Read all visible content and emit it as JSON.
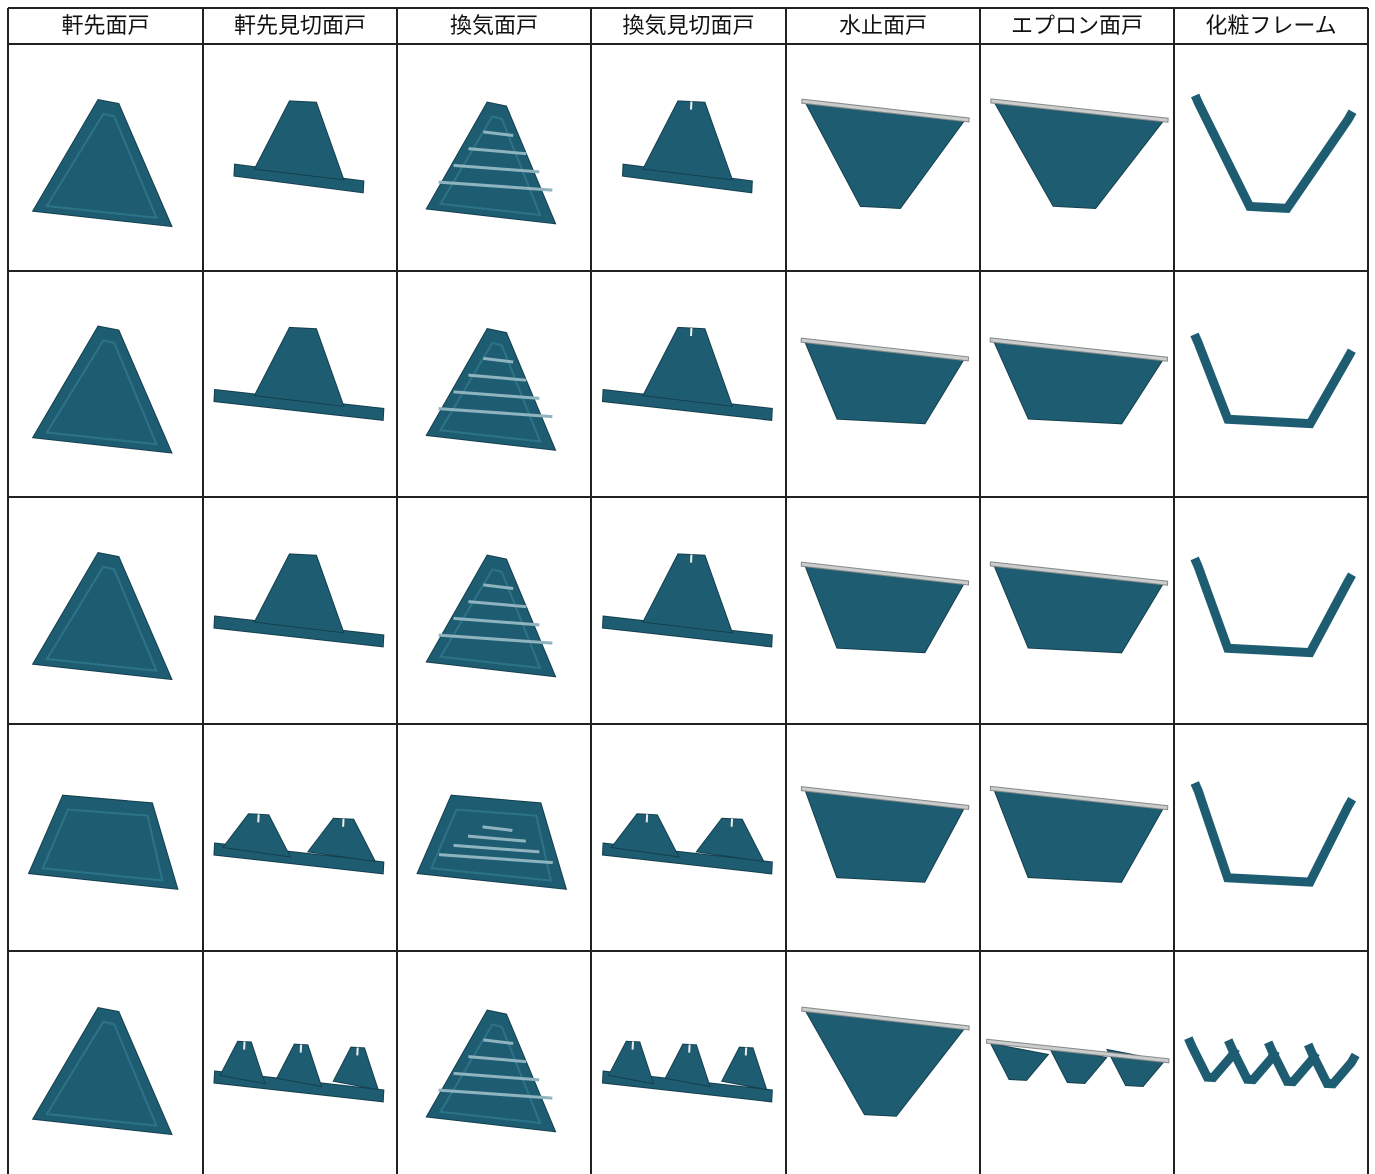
{
  "table": {
    "headers": [
      "軒先面戸",
      "軒先見切面戸",
      "換気面戸",
      "換気見切面戸",
      "水止面戸",
      "エプロン面戸",
      "化粧フレーム"
    ]
  }
}
